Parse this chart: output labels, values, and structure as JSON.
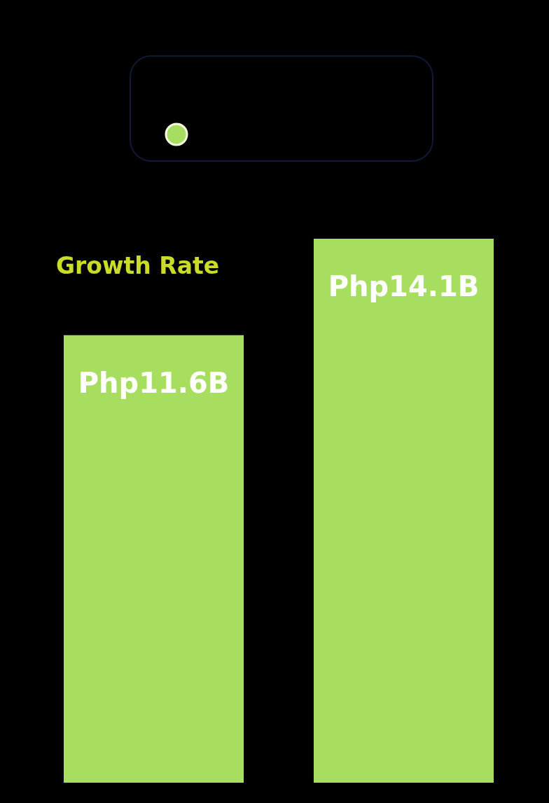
{
  "chart_data": {
    "type": "bar",
    "title": "Growth Rate",
    "categories": [
      null,
      null
    ],
    "values": [
      11600000000,
      14100000000
    ],
    "color": "#a8de60",
    "value_labels": [
      "Php11.6B",
      "Php14.1B"
    ]
  }
}
